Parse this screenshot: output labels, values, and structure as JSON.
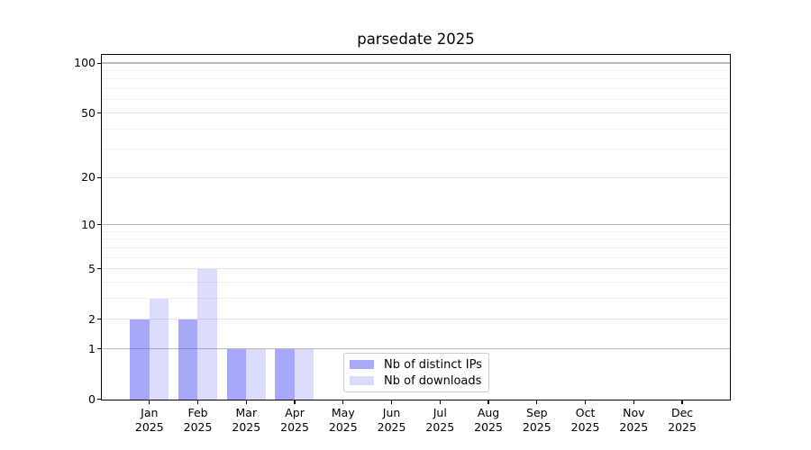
{
  "chart_data": {
    "type": "bar",
    "title": "parsedate 2025",
    "x_tick_months": [
      "Jan",
      "Feb",
      "Mar",
      "Apr",
      "May",
      "Jun",
      "Jul",
      "Aug",
      "Sep",
      "Oct",
      "Nov",
      "Dec"
    ],
    "x_tick_year": "2025",
    "series": [
      {
        "name": "Nb of distinct IPs",
        "swatch_color": "#aaaaf9",
        "bar_color": "rgba(88,88,246,0.52)",
        "values": [
          2,
          2,
          1,
          1,
          0,
          0,
          0,
          0,
          0,
          0,
          0,
          0
        ]
      },
      {
        "name": "Nb of downloads",
        "swatch_color": "#dcdcfc",
        "bar_color": "rgba(88,88,246,0.21)",
        "values": [
          3,
          5,
          1,
          1,
          0,
          0,
          0,
          0,
          0,
          0,
          0,
          0
        ]
      }
    ],
    "y_axis": {
      "scale": "log1p",
      "tick_values": [
        0,
        1,
        2,
        5,
        10,
        20,
        50,
        100
      ],
      "tick_labels": [
        "0",
        "1",
        "2",
        "5",
        "10",
        "20",
        "50",
        "100"
      ],
      "emphasized_gridline_values": [
        1,
        10,
        100
      ],
      "minor_gridline_values": [
        3,
        4,
        6,
        7,
        8,
        9,
        30,
        40,
        60,
        70,
        80,
        90
      ],
      "ylim": [
        0,
        112
      ]
    },
    "legend": {
      "position": "lower center",
      "entries": [
        "Nb of distinct IPs",
        "Nb of downloads"
      ]
    },
    "grid": true
  },
  "colors": {
    "grid_major_emphasis": "#b9b9b9",
    "grid_major": "#e4e4e4",
    "grid_minor": "#f2f2f2",
    "axis": "#000000",
    "legend_border": "#cccccc",
    "text": "#000000",
    "background": "#ffffff"
  }
}
